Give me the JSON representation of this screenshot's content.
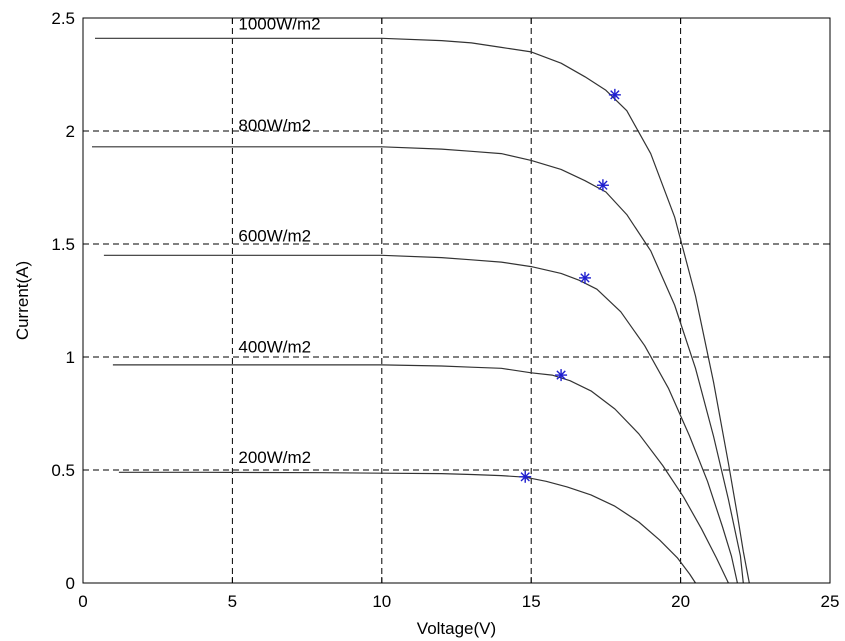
{
  "chart_data": {
    "type": "line",
    "title": "",
    "xlabel": "Voltage(V)",
    "ylabel": "Current(A)",
    "xlim": [
      0,
      25
    ],
    "ylim": [
      0,
      2.5
    ],
    "xticks": [
      "0",
      "5",
      "10",
      "15",
      "20",
      "25"
    ],
    "yticks": [
      "0",
      "0.5",
      "1",
      "1.5",
      "2",
      "2.5"
    ],
    "grid": true,
    "grid_style": "dashed",
    "line_color": "#333333",
    "marker_color": "#1f1fcf",
    "series": [
      {
        "name": "1000W/m2",
        "isc": 2.41,
        "voc": 22.3,
        "x": [
          0.4,
          4,
          8,
          10,
          12,
          13,
          14,
          15,
          16,
          16.8,
          17.5,
          18.2,
          19,
          19.8,
          20.5,
          21.1,
          21.6,
          21.9,
          22.1,
          22.3
        ],
        "y": [
          2.41,
          2.41,
          2.41,
          2.41,
          2.4,
          2.39,
          2.37,
          2.35,
          2.3,
          2.24,
          2.18,
          2.09,
          1.9,
          1.62,
          1.27,
          0.89,
          0.53,
          0.3,
          0.14,
          0.0
        ],
        "mpp": [
          17.8,
          2.16
        ]
      },
      {
        "name": "800W/m2",
        "isc": 1.93,
        "voc": 22.1,
        "x": [
          0.3,
          4,
          8,
          10,
          12,
          13,
          14,
          15,
          16,
          16.8,
          17.5,
          18.2,
          19,
          19.8,
          20.5,
          21.1,
          21.6,
          22.0,
          22.1
        ],
        "y": [
          1.93,
          1.93,
          1.93,
          1.93,
          1.92,
          1.91,
          1.9,
          1.87,
          1.83,
          1.78,
          1.73,
          1.63,
          1.47,
          1.23,
          0.95,
          0.65,
          0.37,
          0.12,
          0.0
        ],
        "mpp": [
          17.4,
          1.76
        ]
      },
      {
        "name": "600W/m2",
        "isc": 1.45,
        "voc": 21.9,
        "x": [
          0.7,
          4,
          8,
          10,
          12,
          13,
          14,
          15,
          16,
          16.6,
          17.2,
          18,
          18.8,
          19.6,
          20.3,
          20.9,
          21.4,
          21.7,
          21.9
        ],
        "y": [
          1.45,
          1.45,
          1.45,
          1.45,
          1.44,
          1.43,
          1.42,
          1.4,
          1.37,
          1.34,
          1.3,
          1.2,
          1.05,
          0.86,
          0.65,
          0.45,
          0.25,
          0.12,
          0.0
        ],
        "mpp": [
          16.8,
          1.35
        ]
      },
      {
        "name": "400W/m2",
        "isc": 0.97,
        "voc": 21.6,
        "x": [
          1.0,
          4,
          8,
          10,
          12,
          13,
          14,
          15,
          15.7,
          16.3,
          17,
          17.8,
          18.6,
          19.4,
          20.1,
          20.7,
          21.2,
          21.6
        ],
        "y": [
          0.965,
          0.965,
          0.965,
          0.965,
          0.96,
          0.955,
          0.95,
          0.93,
          0.92,
          0.895,
          0.85,
          0.77,
          0.66,
          0.52,
          0.38,
          0.24,
          0.11,
          0.0
        ],
        "mpp": [
          16.0,
          0.92
        ]
      },
      {
        "name": "200W/m2",
        "isc": 0.49,
        "voc": 20.5,
        "x": [
          1.2,
          4,
          8,
          10,
          12,
          13,
          14,
          14.8,
          15.5,
          16.2,
          17,
          17.8,
          18.6,
          19.3,
          19.9,
          20.3,
          20.5
        ],
        "y": [
          0.49,
          0.49,
          0.488,
          0.486,
          0.484,
          0.48,
          0.475,
          0.468,
          0.45,
          0.425,
          0.39,
          0.34,
          0.27,
          0.19,
          0.11,
          0.04,
          0.0
        ],
        "mpp": [
          14.8,
          0.47
        ]
      }
    ],
    "series_labels": [
      {
        "text": "1000W/m2",
        "x": 5.2,
        "y": 2.45
      },
      {
        "text": "800W/m2",
        "x": 5.2,
        "y": 2.0
      },
      {
        "text": "600W/m2",
        "x": 5.2,
        "y": 1.51
      },
      {
        "text": "400W/m2",
        "x": 5.2,
        "y": 1.02
      },
      {
        "text": "200W/m2",
        "x": 5.2,
        "y": 0.53
      }
    ]
  }
}
